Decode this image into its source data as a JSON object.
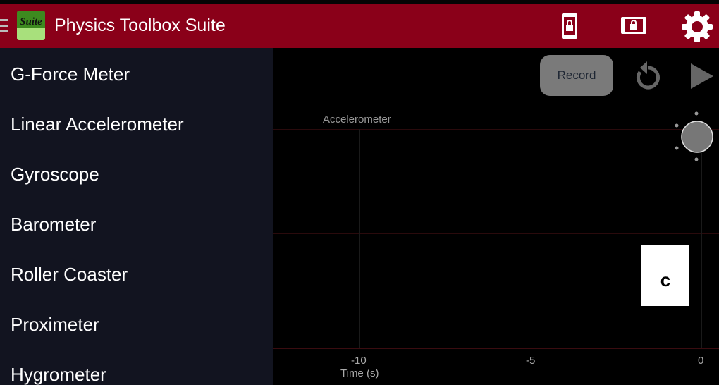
{
  "header": {
    "title": "Physics Toolbox Suite",
    "logo_text": "Suite",
    "icons": [
      "menu-icon",
      "portrait-lock-icon",
      "landscape-lock-icon",
      "gear-icon"
    ]
  },
  "sidebar": {
    "items": [
      {
        "label": "G-Force Meter"
      },
      {
        "label": "Linear Accelerometer"
      },
      {
        "label": "Gyroscope"
      },
      {
        "label": "Barometer"
      },
      {
        "label": "Roller Coaster"
      },
      {
        "label": "Proximeter"
      },
      {
        "label": "Hygrometer"
      }
    ]
  },
  "controls": {
    "record_label": "Record",
    "icons": [
      "reset-icon",
      "play-icon"
    ]
  },
  "chart": {
    "title": "Accelerometer",
    "xlabel": "Time (s)",
    "xticks": [
      "-10",
      "-5",
      "0"
    ]
  },
  "overlay": {
    "label": "c"
  },
  "colors": {
    "header": "#8a0019",
    "sidebar": "#121420",
    "record": "#7a7a7a"
  }
}
